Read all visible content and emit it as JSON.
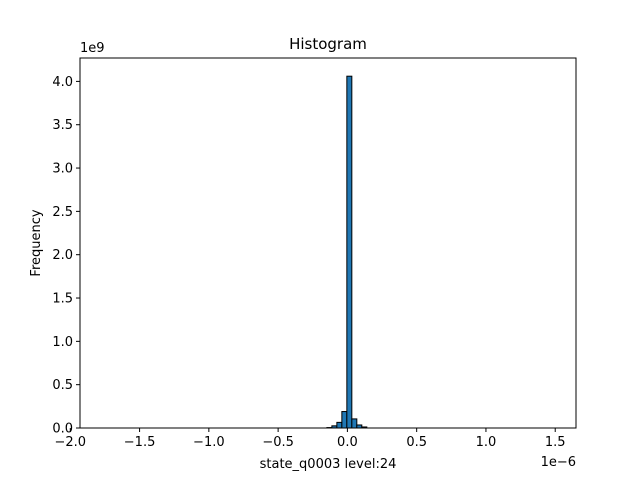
{
  "chart_data": {
    "type": "bar",
    "title": "Histogram",
    "xlabel": "state_q0003 level:24",
    "ylabel": "Frequency",
    "x_offset_text": "1e−6",
    "y_offset_text": "1e9",
    "xlim": [
      -1.93e-06,
      1.65e-06
    ],
    "ylim": [
      0,
      4270000000.0
    ],
    "x_ticks": [
      -2e-06,
      -1.5e-06,
      -1e-06,
      -5e-07,
      0.0,
      5e-07,
      1e-06,
      1.5e-06
    ],
    "x_tick_labels": [
      "−2.0",
      "−1.5",
      "−1.0",
      "−0.5",
      "0.0",
      "0.5",
      "1.0",
      "1.5"
    ],
    "y_ticks": [
      0,
      500000000.0,
      1000000000.0,
      1500000000.0,
      2000000000.0,
      2500000000.0,
      3000000000.0,
      3500000000.0,
      4000000000.0
    ],
    "y_tick_labels": [
      "0.0",
      "0.5",
      "1.0",
      "1.5",
      "2.0",
      "2.5",
      "3.0",
      "3.5",
      "4.0"
    ],
    "bar_color": "#1f77b4",
    "edge_color": "#000000",
    "grid": false,
    "bins": [
      {
        "x0": -1.85e-06,
        "x1": -1.48e-07,
        "value": 0
      },
      {
        "x0": -1.48e-07,
        "x1": -1.12e-07,
        "value": 5000000
      },
      {
        "x0": -1.12e-07,
        "x1": -7.6e-08,
        "value": 25000000
      },
      {
        "x0": -7.6e-08,
        "x1": -4e-08,
        "value": 65000000
      },
      {
        "x0": -4e-08,
        "x1": -4e-09,
        "value": 190000000
      },
      {
        "x0": -4e-09,
        "x1": 3.2e-08,
        "value": 4060000000
      },
      {
        "x0": 3.2e-08,
        "x1": 6.8e-08,
        "value": 105000000
      },
      {
        "x0": 6.8e-08,
        "x1": 1.04e-07,
        "value": 35000000
      },
      {
        "x0": 1.04e-07,
        "x1": 1.4e-07,
        "value": 12000000
      },
      {
        "x0": 1.4e-07,
        "x1": 1.56e-06,
        "value": 0
      }
    ]
  }
}
